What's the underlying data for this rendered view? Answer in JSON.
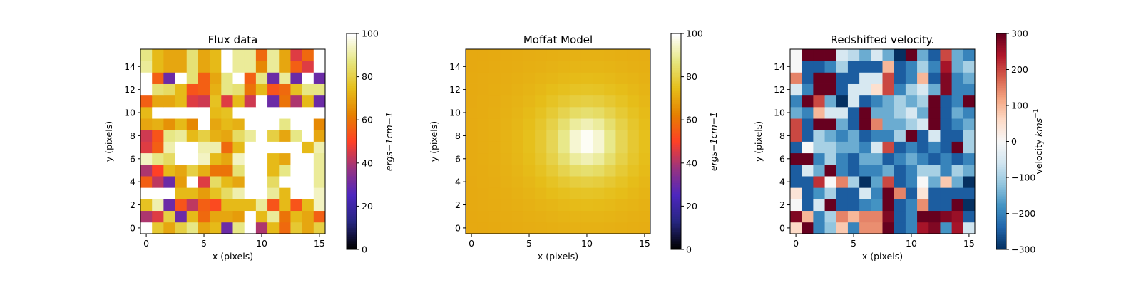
{
  "chart_data": [
    {
      "type": "heatmap",
      "title": "Flux data",
      "xlabel": "x (pixels)",
      "ylabel": "y (pixels)",
      "xlim": [
        -0.5,
        15.5
      ],
      "ylim": [
        -0.5,
        15.5
      ],
      "xticks": [
        0,
        5,
        10,
        15
      ],
      "yticks": [
        0,
        2,
        4,
        6,
        8,
        10,
        12,
        14
      ],
      "colormap": "CMRmap",
      "colorbar": {
        "label": "ergs^-1cm^-1",
        "range": [
          0,
          100
        ],
        "ticks": [
          0,
          20,
          40,
          60,
          80,
          100
        ]
      },
      "z": [
        [
          100,
          78,
          70,
          80,
          88,
          70,
          74,
          30,
          88,
          100,
          40,
          74,
          58,
          78,
          70,
          80
        ],
        [
          40,
          46,
          80,
          30,
          74,
          58,
          70,
          70,
          68,
          100,
          74,
          90,
          60,
          74,
          70,
          56
        ],
        [
          76,
          92,
          30,
          54,
          42,
          56,
          52,
          74,
          74,
          74,
          90,
          54,
          74,
          54,
          74,
          94
        ],
        [
          100,
          100,
          100,
          74,
          74,
          68,
          76,
          84,
          92,
          100,
          100,
          90,
          74,
          100,
          100,
          94
        ],
        [
          56,
          42,
          30,
          68,
          100,
          46,
          84,
          74,
          70,
          100,
          100,
          84,
          100,
          100,
          100,
          90
        ],
        [
          40,
          50,
          74,
          70,
          80,
          72,
          60,
          60,
          86,
          100,
          100,
          74,
          88,
          100,
          100,
          90
        ],
        [
          94,
          88,
          84,
          100,
          100,
          94,
          74,
          70,
          94,
          100,
          100,
          74,
          70,
          100,
          100,
          90
        ],
        [
          46,
          56,
          92,
          100,
          100,
          92,
          92,
          58,
          74,
          100,
          100,
          100,
          100,
          100,
          74,
          92
        ],
        [
          44,
          54,
          88,
          90,
          74,
          80,
          72,
          70,
          84,
          90,
          100,
          80,
          70,
          88,
          100,
          70
        ],
        [
          70,
          72,
          66,
          74,
          64,
          100,
          70,
          74,
          72,
          100,
          100,
          100,
          88,
          100,
          100,
          64
        ],
        [
          74,
          100,
          100,
          100,
          100,
          100,
          74,
          76,
          100,
          100,
          100,
          100,
          100,
          100,
          100,
          100
        ],
        [
          56,
          70,
          70,
          74,
          46,
          44,
          76,
          46,
          74,
          44,
          100,
          30,
          60,
          40,
          74,
          30
        ],
        [
          100,
          86,
          84,
          74,
          54,
          56,
          72,
          88,
          86,
          60,
          74,
          54,
          58,
          76,
          88,
          88
        ],
        [
          100,
          56,
          30,
          100,
          86,
          56,
          70,
          88,
          100,
          56,
          88,
          30,
          90,
          30,
          100,
          30
        ],
        [
          90,
          74,
          70,
          70,
          86,
          70,
          74,
          100,
          90,
          90,
          64,
          90,
          70,
          56,
          46,
          100
        ],
        [
          88,
          74,
          70,
          70,
          86,
          70,
          74,
          100,
          90,
          90,
          58,
          90,
          70,
          46,
          58,
          100
        ]
      ]
    },
    {
      "type": "heatmap",
      "title": "Moffat Model",
      "xlabel": "x (pixels)",
      "ylabel": "y (pixels)",
      "xlim": [
        -0.5,
        15.5
      ],
      "ylim": [
        -0.5,
        15.5
      ],
      "xticks": [
        0,
        5,
        10,
        15
      ],
      "yticks": [
        0,
        2,
        4,
        6,
        8,
        10,
        12,
        14
      ],
      "colormap": "CMRmap",
      "colorbar": {
        "label": "ergs^-1cm^-1",
        "range": [
          0,
          100
        ],
        "ticks": [
          0,
          20,
          40,
          60,
          80,
          100
        ]
      },
      "model": {
        "profile": "moffat",
        "x0": 10,
        "y0": 7.5,
        "amplitude": 30,
        "background": 70,
        "alpha": 3.2,
        "beta": 1.4
      }
    },
    {
      "type": "heatmap",
      "title": "Redshifted velocity.",
      "xlabel": "x (pixels)",
      "ylabel": "y (pixels)",
      "xlim": [
        -0.5,
        15.5
      ],
      "ylim": [
        -0.5,
        15.5
      ],
      "xticks": [
        0,
        5,
        10,
        15
      ],
      "yticks": [
        0,
        2,
        4,
        6,
        8,
        10,
        12,
        14
      ],
      "colormap": "RdBu_r",
      "colorbar": {
        "label": "velocity kms^-1",
        "range": [
          -300,
          300
        ],
        "ticks": [
          -300,
          -200,
          -100,
          0,
          100,
          200,
          300
        ]
      },
      "z": [
        [
          60,
          300,
          -200,
          -120,
          80,
          -200,
          140,
          140,
          300,
          -250,
          -200,
          250,
          280,
          -180,
          250,
          -60
        ],
        [
          280,
          100,
          -200,
          -100,
          150,
          100,
          150,
          150,
          280,
          -250,
          -200,
          300,
          300,
          280,
          260,
          -250
        ],
        [
          0,
          -250,
          -50,
          300,
          -250,
          -250,
          -200,
          -180,
          300,
          -250,
          -200,
          140,
          -250,
          -250,
          300,
          -300
        ],
        [
          40,
          -250,
          -180,
          -100,
          -250,
          -250,
          -50,
          -200,
          300,
          150,
          -250,
          40,
          -250,
          -250,
          -250,
          -250
        ],
        [
          -250,
          -250,
          220,
          0,
          150,
          -100,
          -300,
          -160,
          200,
          -250,
          -200,
          0,
          -150,
          80,
          -150,
          -300
        ],
        [
          -250,
          -50,
          -150,
          300,
          -200,
          -250,
          -200,
          -200,
          -150,
          -250,
          -200,
          -100,
          -100,
          -200,
          -100,
          -150
        ],
        [
          300,
          300,
          -200,
          -100,
          -200,
          -250,
          -150,
          -150,
          -250,
          -200,
          -150,
          -200,
          -250,
          -200,
          -250,
          -200
        ],
        [
          -250,
          0,
          -100,
          -100,
          -150,
          -150,
          -200,
          -50,
          200,
          -250,
          -200,
          -250,
          -200,
          -250,
          300,
          -100
        ],
        [
          200,
          -250,
          -100,
          -150,
          -200,
          -150,
          -250,
          -200,
          -200,
          -100,
          300,
          -250,
          -50,
          -250,
          -250,
          -100
        ],
        [
          200,
          -250,
          300,
          300,
          -150,
          -250,
          300,
          150,
          -150,
          -150,
          -100,
          -50,
          300,
          -250,
          -200,
          -150
        ],
        [
          -150,
          -200,
          100,
          -50,
          -50,
          -250,
          300,
          -150,
          -150,
          -100,
          -50,
          -150,
          300,
          -250,
          -150,
          -200
        ],
        [
          -200,
          300,
          200,
          -150,
          -300,
          -50,
          -250,
          -200,
          -150,
          -100,
          -150,
          -100,
          300,
          -250,
          -200,
          300
        ],
        [
          -50,
          -200,
          300,
          300,
          -250,
          -50,
          -50,
          50,
          200,
          -200,
          -100,
          -50,
          -150,
          280,
          -200,
          -200
        ],
        [
          150,
          -250,
          300,
          300,
          -250,
          -250,
          -50,
          -50,
          200,
          -250,
          -200,
          100,
          -250,
          280,
          -200,
          -150
        ],
        [
          0,
          -250,
          -250,
          -200,
          -100,
          -250,
          -250,
          -250,
          100,
          -250,
          -200,
          -100,
          -200,
          250,
          -150,
          -100
        ],
        [
          0,
          300,
          300,
          300,
          -50,
          -80,
          -150,
          -50,
          -150,
          -300,
          300,
          -150,
          -250,
          200,
          -150,
          -200
        ]
      ]
    }
  ]
}
